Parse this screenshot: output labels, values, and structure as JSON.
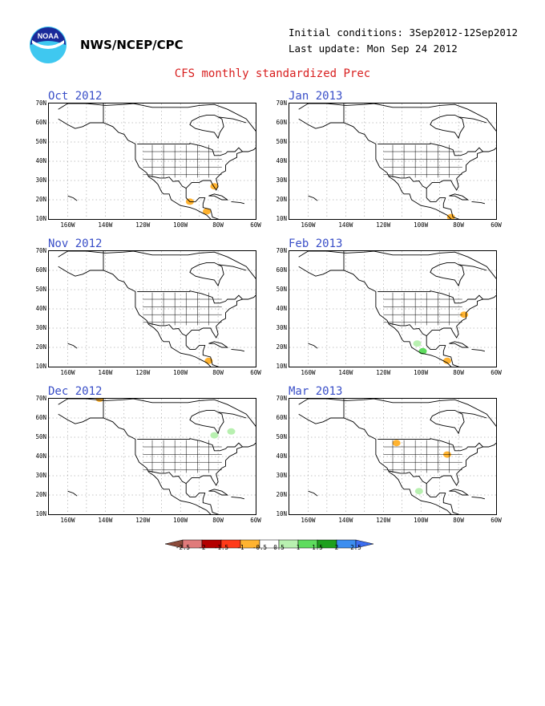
{
  "header": {
    "org": "NWS/NCEP/CPC",
    "initial_conditions": "Initial conditions: 3Sep2012-12Sep2012",
    "last_update": "Last update: Mon Sep 24 2012",
    "logo_text": "NOAA",
    "title": "CFS monthly standardized Prec"
  },
  "axes": {
    "lat_labels": [
      "70N",
      "60N",
      "50N",
      "40N",
      "30N",
      "20N",
      "10N"
    ],
    "lon_labels": [
      "160W",
      "140W",
      "120W",
      "100W",
      "80W",
      "60W"
    ]
  },
  "panels": [
    {
      "label": "Oct 2012",
      "anomalies": [
        {
          "lon": -95,
          "lat": 19,
          "category": "-0.5"
        },
        {
          "lon": -82,
          "lat": 27,
          "category": "-0.5"
        },
        {
          "lon": -86,
          "lat": 14,
          "category": "-0.5"
        }
      ]
    },
    {
      "label": "Nov 2012",
      "anomalies": [
        {
          "lon": -85,
          "lat": 13,
          "category": "-0.5"
        }
      ]
    },
    {
      "label": "Dec 2012",
      "anomalies": [
        {
          "lon": -143,
          "lat": 70,
          "category": "-0.5"
        },
        {
          "lon": -82,
          "lat": 51,
          "category": "0.5"
        },
        {
          "lon": -73,
          "lat": 53,
          "category": "0.5"
        }
      ]
    },
    {
      "label": "Jan 2013",
      "anomalies": [
        {
          "lon": -84,
          "lat": 11,
          "category": "-0.5"
        }
      ]
    },
    {
      "label": "Feb 2013",
      "anomalies": [
        {
          "lon": -102,
          "lat": 22,
          "category": "0.5"
        },
        {
          "lon": -99,
          "lat": 18,
          "category": "1"
        },
        {
          "lon": -77,
          "lat": 37,
          "category": "-0.5"
        },
        {
          "lon": -86,
          "lat": 13,
          "category": "-0.5"
        }
      ]
    },
    {
      "label": "Mar 2013",
      "anomalies": [
        {
          "lon": -113,
          "lat": 47,
          "category": "-0.5"
        },
        {
          "lon": -86,
          "lat": 41,
          "category": "-0.5"
        },
        {
          "lon": -101,
          "lat": 22,
          "category": "0.5"
        }
      ]
    }
  ],
  "colorbar": {
    "labels": [
      "-2.5",
      "-2",
      "-1.5",
      "-1",
      "-0.5",
      "0.5",
      "1",
      "1.5",
      "2",
      "2.5"
    ],
    "colors": [
      "#8b4a3a",
      "#e07b7b",
      "#b40000",
      "#ff3a1a",
      "#ffb330",
      "#ffffff",
      "#b8f0b0",
      "#5edc5e",
      "#1ea01e",
      "#3c8ef0",
      "#3c6ef0"
    ]
  }
}
